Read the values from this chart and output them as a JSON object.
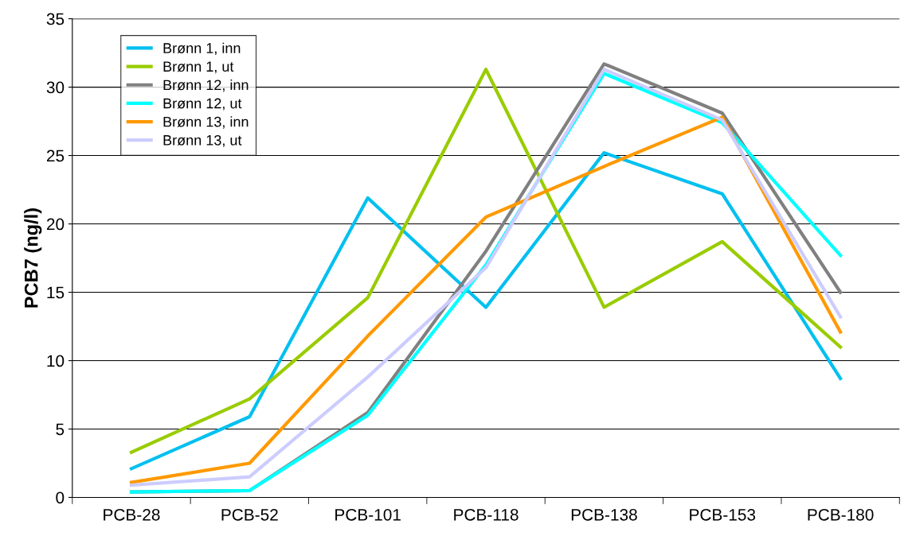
{
  "chart_data": {
    "type": "line",
    "ylabel": "PCB7 (ng/l)",
    "categories": [
      "PCB-28",
      "PCB-52",
      "PCB-101",
      "PCB-118",
      "PCB-138",
      "PCB-153",
      "PCB-180"
    ],
    "series": [
      {
        "name": "Brønn 1, inn",
        "color": "#00c0f0",
        "values": [
          2.1,
          5.9,
          21.9,
          13.9,
          25.2,
          22.2,
          8.7
        ]
      },
      {
        "name": "Brønn 1, ut",
        "color": "#99cc00",
        "values": [
          3.3,
          7.2,
          14.6,
          31.3,
          13.9,
          18.7,
          11.0
        ]
      },
      {
        "name": "Brønn 12, inn",
        "color": "#808080",
        "values": [
          0.4,
          0.5,
          6.2,
          18.0,
          31.7,
          28.1,
          15.0
        ]
      },
      {
        "name": "Brønn 12, ut",
        "color": "#00ffff",
        "values": [
          0.4,
          0.5,
          6.0,
          17.0,
          31.0,
          27.4,
          17.7
        ]
      },
      {
        "name": "Brønn 13, inn",
        "color": "#ff9900",
        "values": [
          1.1,
          2.5,
          11.8,
          20.5,
          24.2,
          27.8,
          12.1
        ]
      },
      {
        "name": "Brønn 13, ut",
        "color": "#ccccff",
        "values": [
          0.9,
          1.5,
          8.8,
          16.8,
          31.3,
          27.6,
          13.2
        ]
      }
    ],
    "ylim": [
      0,
      35
    ],
    "yticks": [
      0,
      5,
      10,
      15,
      20,
      25,
      30,
      35
    ],
    "grid": "y",
    "legend": "top left",
    "marker": "none",
    "line_style": "solid"
  }
}
